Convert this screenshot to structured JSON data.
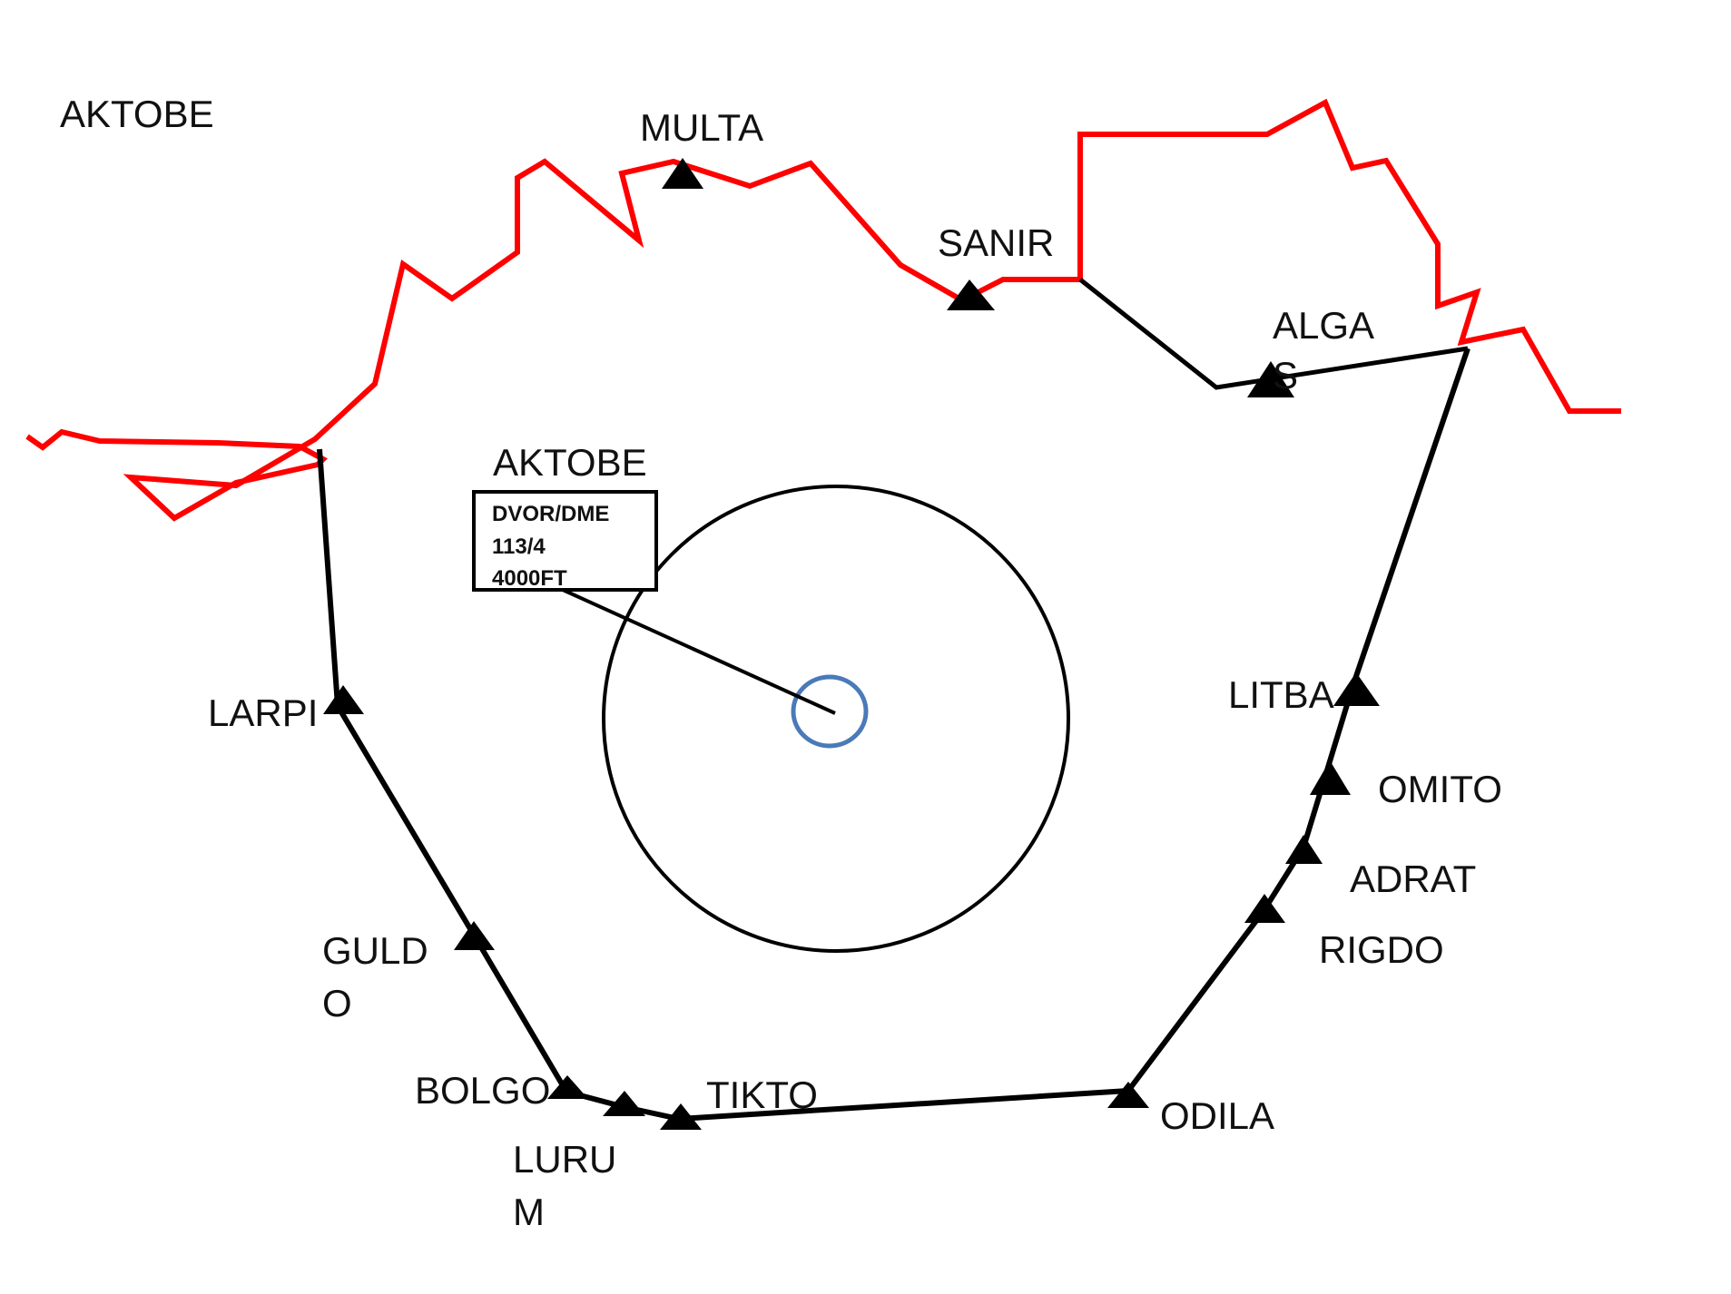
{
  "colors": {
    "border": "#ff0000",
    "route": "#000000",
    "station": "#4a7ab8",
    "marker": "#000000"
  },
  "region_label": "AKTOBE",
  "navaid": {
    "name": "AKTOBE",
    "type": "DVOR/DME",
    "frequency": "113/4",
    "altitude": "4000FT"
  },
  "waypoints": {
    "multa": "MULTA",
    "sanir": "SANIR",
    "alga_line1": "ALGA",
    "alga_line2": "S",
    "larpi": "LARPI",
    "guldo_line1": "GULD",
    "guldo_line2": "O",
    "bolgo": "BOLGO",
    "lurum_line1": "LURU",
    "lurum_line2": "M",
    "tikto": "TIKTO",
    "odila": "ODILA",
    "rigdo": "RIGDO",
    "adrat": "ADRAT",
    "omito": "OMITO",
    "litba": "LITBA"
  }
}
